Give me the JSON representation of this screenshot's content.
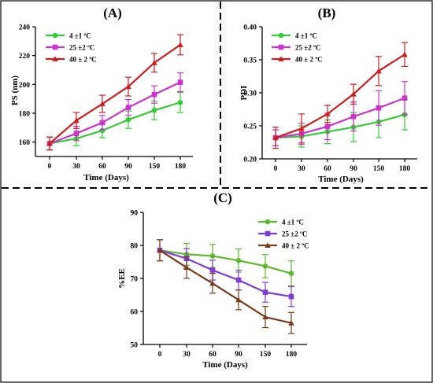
{
  "chart_data": [
    {
      "panel": "(A)",
      "type": "line",
      "xlabel": "Time (Days)",
      "ylabel": "PS (nm)",
      "x": [
        0,
        30,
        60,
        90,
        150,
        180
      ],
      "ylim": [
        150,
        240
      ],
      "yticks": [
        160,
        180,
        200,
        220,
        240
      ],
      "grid": false,
      "legend": "top-left",
      "series": [
        {
          "name": "4 ±1 ºC",
          "color": "#33cc33",
          "marker": "circle",
          "values": [
            159,
            162.5,
            168,
            175.5,
            182,
            187.5
          ],
          "errors": [
            4.5,
            5,
            5,
            6,
            6.5,
            7
          ]
        },
        {
          "name": "25 ±2 ºC",
          "color": "#cc33cc",
          "marker": "square",
          "values": [
            159,
            166,
            173.5,
            184,
            193,
            201.5
          ],
          "errors": [
            4.5,
            5,
            5,
            5.5,
            6,
            6.5
          ]
        },
        {
          "name": "40 ± 2 ºC",
          "color": "#cc1f1f",
          "marker": "triangle",
          "values": [
            159,
            175,
            186.5,
            198.5,
            215,
            227.5
          ],
          "errors": [
            4.5,
            5.5,
            6,
            6.5,
            6.5,
            7
          ]
        }
      ]
    },
    {
      "panel": "(B)",
      "type": "line",
      "xlabel": "Time (Days)",
      "ylabel": "PDI",
      "x": [
        0,
        30,
        60,
        90,
        150,
        180
      ],
      "ylim": [
        0.2,
        0.4
      ],
      "yticks": [
        "0.20",
        "0.25",
        "0.30",
        "0.35",
        "0.40"
      ],
      "grid": false,
      "legend": "top-left",
      "series": [
        {
          "name": "4 ±1 ºC",
          "color": "#33cc33",
          "marker": "circle",
          "values": [
            0.232,
            0.234,
            0.241,
            0.248,
            0.256,
            0.267
          ],
          "errors": [
            0.012,
            0.016,
            0.018,
            0.022,
            0.024,
            0.023
          ]
        },
        {
          "name": "25 ±2 ºC",
          "color": "#cc33cc",
          "marker": "square",
          "values": [
            0.232,
            0.238,
            0.249,
            0.264,
            0.277,
            0.292
          ],
          "errors": [
            0.012,
            0.016,
            0.02,
            0.022,
            0.026,
            0.025
          ]
        },
        {
          "name": "40 ± 2 ºC",
          "color": "#cc1f1f",
          "marker": "triangle",
          "values": [
            0.232,
            0.246,
            0.268,
            0.298,
            0.333,
            0.358
          ],
          "errors": [
            0.016,
            0.022,
            0.013,
            0.015,
            0.022,
            0.018
          ]
        }
      ]
    },
    {
      "panel": "(C)",
      "type": "line",
      "xlabel": "Time (Days)",
      "ylabel": "%EE",
      "x": [
        0,
        30,
        60,
        90,
        150,
        180
      ],
      "ylim": [
        50,
        90
      ],
      "yticks": [
        50,
        60,
        70,
        80,
        90
      ],
      "grid": false,
      "legend": "top-right",
      "series": [
        {
          "name": "4 ±1 ºC",
          "color": "#5cb82e",
          "marker": "circle",
          "values": [
            78.5,
            77.3,
            76.8,
            75.4,
            73.7,
            71.5
          ],
          "errors": [
            3.2,
            3.3,
            3.5,
            3.5,
            3.5,
            3.8
          ]
        },
        {
          "name": "25 ±2 ºC",
          "color": "#7e3fd1",
          "marker": "square",
          "values": [
            78.5,
            76,
            72.5,
            69.5,
            65.8,
            64.5
          ],
          "errors": [
            3.2,
            3.0,
            3.0,
            3.0,
            3.0,
            3.0
          ]
        },
        {
          "name": "40 ± 2 ºC",
          "color": "#7a3a1a",
          "marker": "triangle",
          "values": [
            78.5,
            73.3,
            68.5,
            63.5,
            58.3,
            56.5
          ],
          "errors": [
            3.2,
            3.3,
            3.0,
            3.0,
            3.2,
            3.2
          ]
        }
      ]
    }
  ]
}
